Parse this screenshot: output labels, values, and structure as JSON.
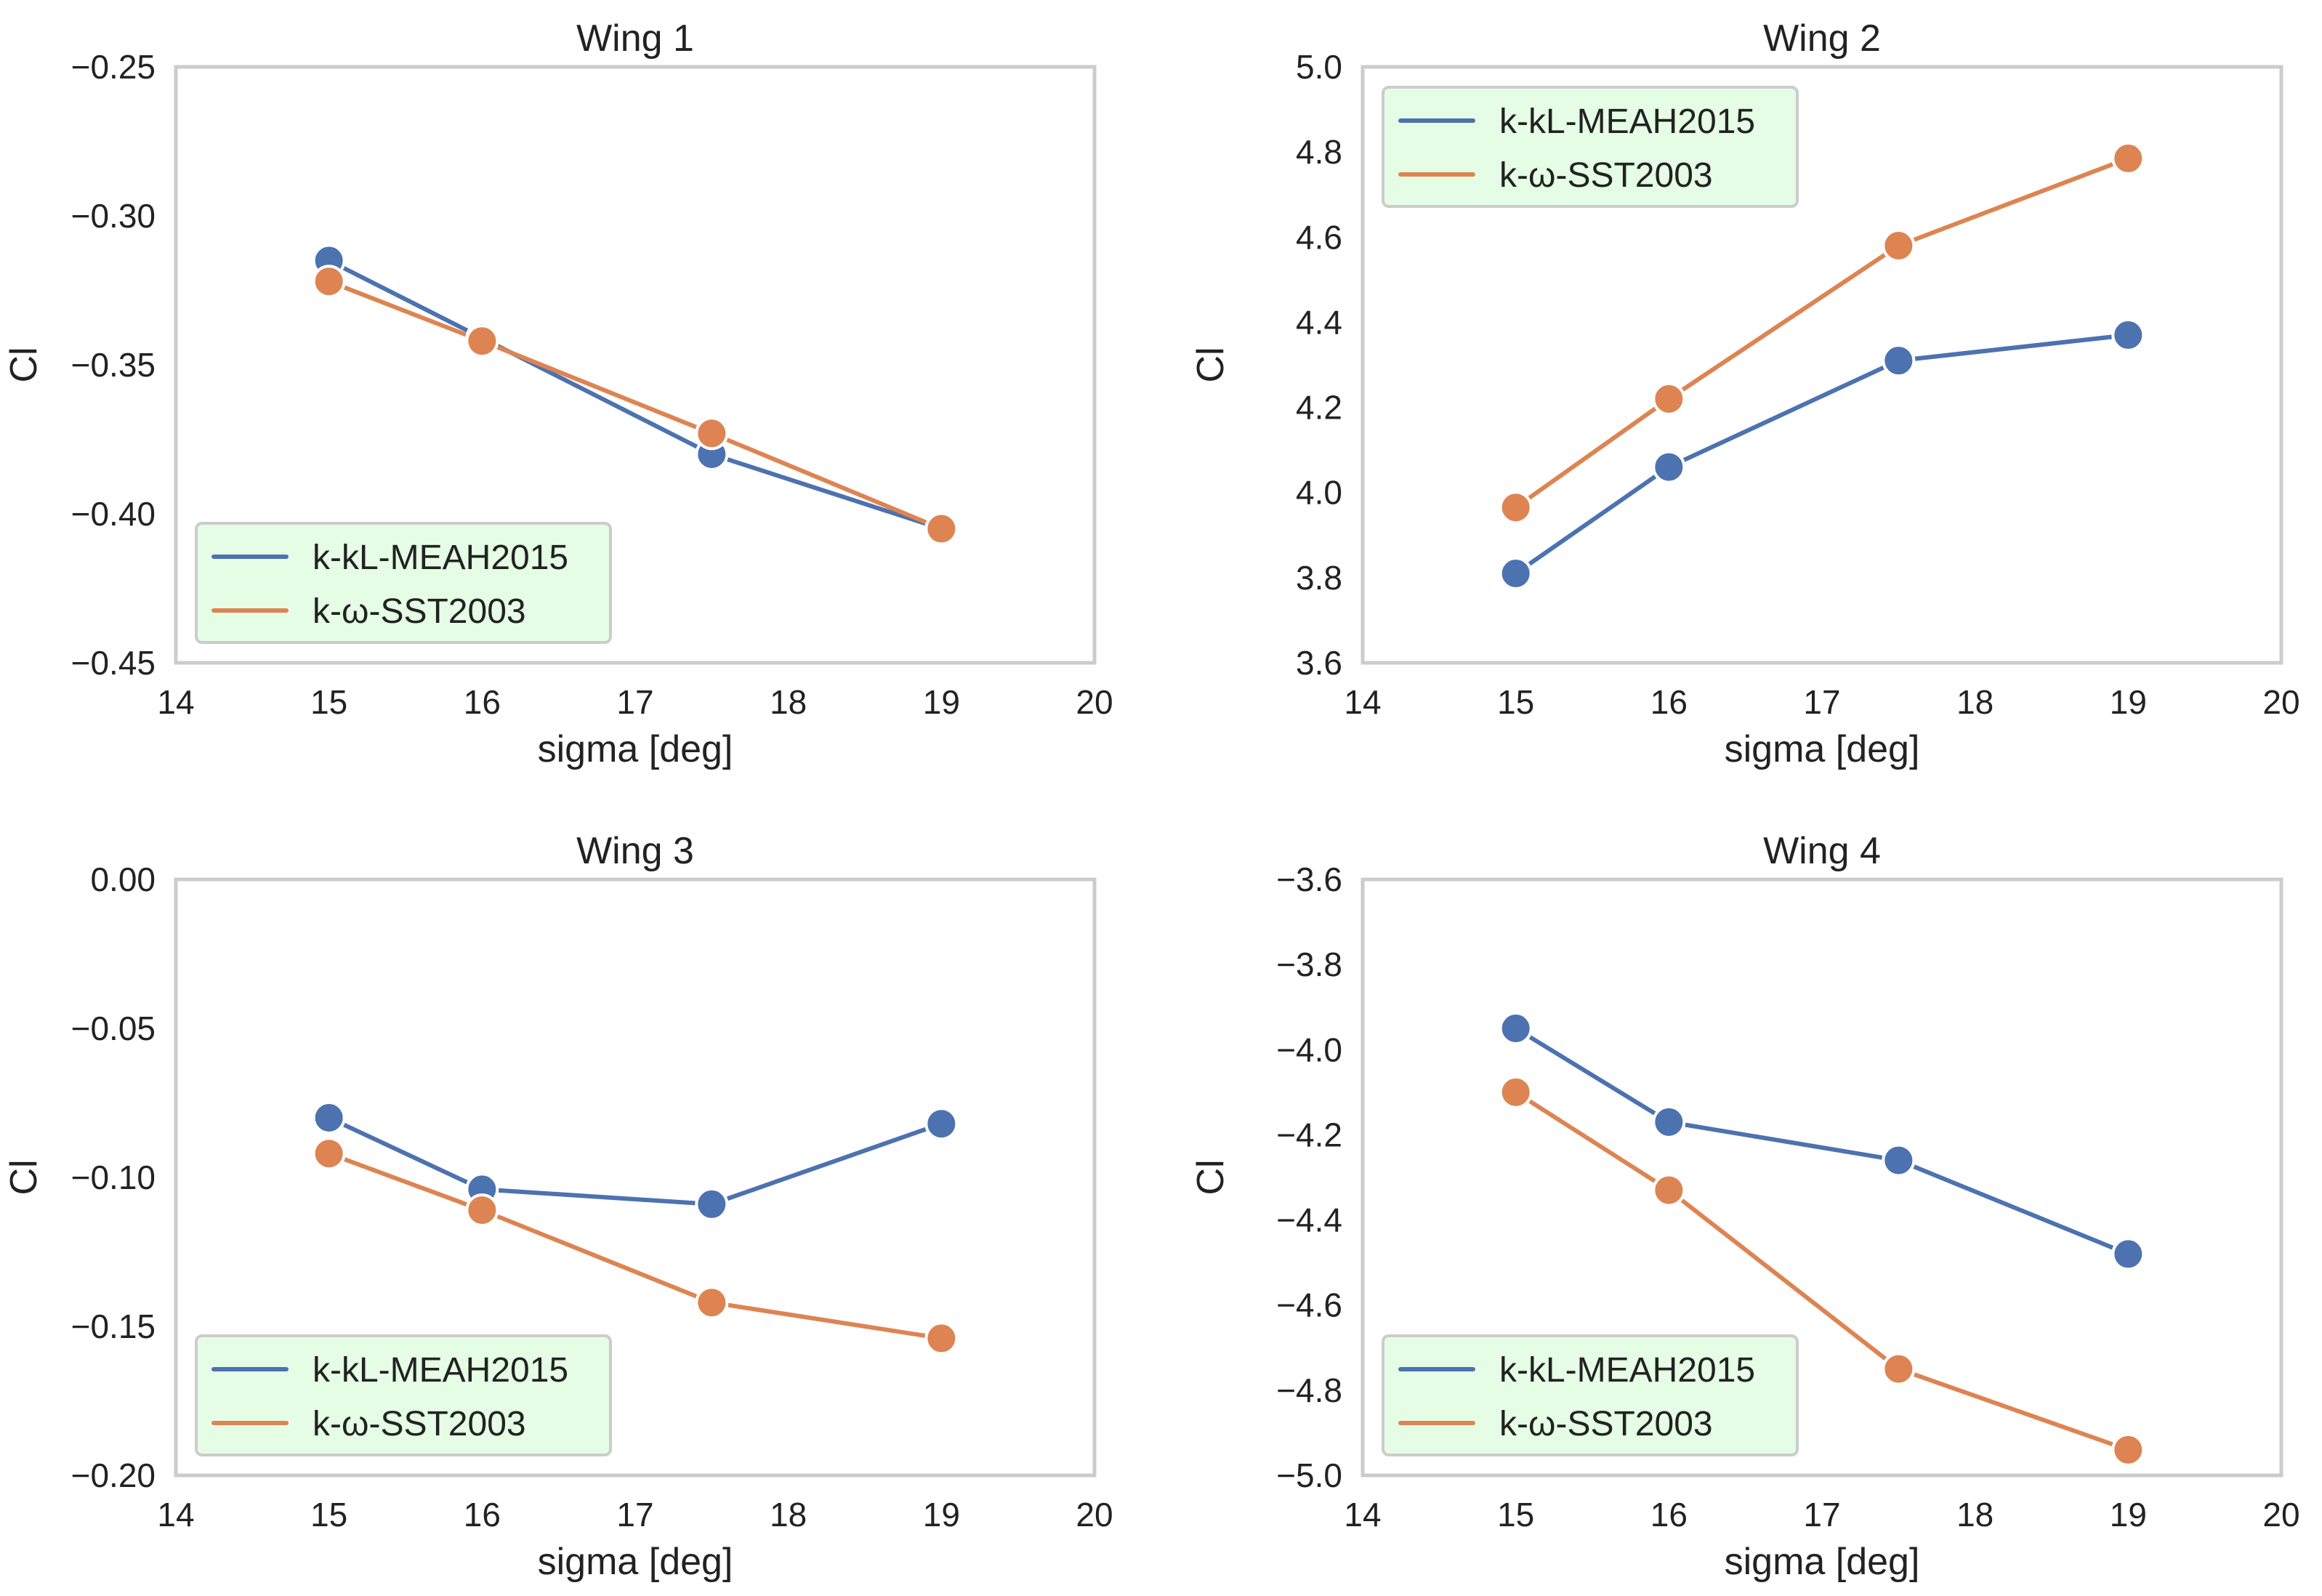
{
  "colors": {
    "kkl": "#4c72b0",
    "sst": "#dd8452",
    "legend_bg": "#e5fde5",
    "frame": "#cccccc"
  },
  "chart_data": [
    {
      "type": "line",
      "title": "Wing 1",
      "xlabel": "sigma [deg]",
      "ylabel": "Cl",
      "xlim": [
        14,
        20
      ],
      "ylim": [
        -0.45,
        -0.25
      ],
      "xticks": [
        14,
        15,
        16,
        17,
        18,
        19,
        20
      ],
      "xtick_labels": [
        "14",
        "15",
        "16",
        "17",
        "18",
        "19",
        "20"
      ],
      "yticks": [
        -0.45,
        -0.4,
        -0.35,
        -0.3,
        -0.25
      ],
      "ytick_labels": [
        "−0.45",
        "−0.40",
        "−0.35",
        "−0.30",
        "−0.25"
      ],
      "legend_position": "lower-left",
      "x": [
        15,
        16,
        17.5,
        19
      ],
      "series": [
        {
          "name": "k-kL-MEAH2015",
          "color": "#4c72b0",
          "values": [
            -0.315,
            -0.341,
            -0.38,
            -0.405
          ]
        },
        {
          "name": "k-ω-SST2003",
          "color": "#dd8452",
          "values": [
            -0.322,
            -0.342,
            -0.373,
            -0.405
          ]
        }
      ]
    },
    {
      "type": "line",
      "title": "Wing 2",
      "xlabel": "sigma [deg]",
      "ylabel": "Cl",
      "xlim": [
        14,
        20
      ],
      "ylim": [
        3.6,
        5.0
      ],
      "xticks": [
        14,
        15,
        16,
        17,
        18,
        19,
        20
      ],
      "xtick_labels": [
        "14",
        "15",
        "16",
        "17",
        "18",
        "19",
        "20"
      ],
      "yticks": [
        3.6,
        3.8,
        4.0,
        4.2,
        4.4,
        4.6,
        4.8,
        5.0
      ],
      "ytick_labels": [
        "3.6",
        "3.8",
        "4.0",
        "4.2",
        "4.4",
        "4.6",
        "4.8",
        "5.0"
      ],
      "legend_position": "upper-left",
      "x": [
        15,
        16,
        17.5,
        19
      ],
      "series": [
        {
          "name": "k-kL-MEAH2015",
          "color": "#4c72b0",
          "values": [
            3.81,
            4.06,
            4.31,
            4.37
          ]
        },
        {
          "name": "k-ω-SST2003",
          "color": "#dd8452",
          "values": [
            3.965,
            4.22,
            4.58,
            4.785
          ]
        }
      ]
    },
    {
      "type": "line",
      "title": "Wing 3",
      "xlabel": "sigma [deg]",
      "ylabel": "Cl",
      "xlim": [
        14,
        20
      ],
      "ylim": [
        -0.2,
        0.0
      ],
      "xticks": [
        14,
        15,
        16,
        17,
        18,
        19,
        20
      ],
      "xtick_labels": [
        "14",
        "15",
        "16",
        "17",
        "18",
        "19",
        "20"
      ],
      "yticks": [
        -0.2,
        -0.15,
        -0.1,
        -0.05,
        0.0
      ],
      "ytick_labels": [
        "−0.20",
        "−0.15",
        "−0.10",
        "−0.05",
        "0.00"
      ],
      "legend_position": "lower-left",
      "x": [
        15,
        16,
        17.5,
        19
      ],
      "series": [
        {
          "name": "k-kL-MEAH2015",
          "color": "#4c72b0",
          "values": [
            -0.08,
            -0.104,
            -0.109,
            -0.082
          ]
        },
        {
          "name": "k-ω-SST2003",
          "color": "#dd8452",
          "values": [
            -0.092,
            -0.111,
            -0.142,
            -0.154
          ]
        }
      ]
    },
    {
      "type": "line",
      "title": "Wing 4",
      "xlabel": "sigma [deg]",
      "ylabel": "Cl",
      "xlim": [
        14,
        20
      ],
      "ylim": [
        -5.0,
        -3.6
      ],
      "xticks": [
        14,
        15,
        16,
        17,
        18,
        19,
        20
      ],
      "xtick_labels": [
        "14",
        "15",
        "16",
        "17",
        "18",
        "19",
        "20"
      ],
      "yticks": [
        -5.0,
        -4.8,
        -4.6,
        -4.4,
        -4.2,
        -4.0,
        -3.8,
        -3.6
      ],
      "ytick_labels": [
        "−5.0",
        "−4.8",
        "−4.6",
        "−4.4",
        "−4.2",
        "−4.0",
        "−3.8",
        "−3.6"
      ],
      "legend_position": "lower-left",
      "x": [
        15,
        16,
        17.5,
        19
      ],
      "series": [
        {
          "name": "k-kL-MEAH2015",
          "color": "#4c72b0",
          "values": [
            -3.95,
            -4.17,
            -4.26,
            -4.48
          ]
        },
        {
          "name": "k-ω-SST2003",
          "color": "#dd8452",
          "values": [
            -4.1,
            -4.33,
            -4.75,
            -4.94
          ]
        }
      ]
    }
  ]
}
